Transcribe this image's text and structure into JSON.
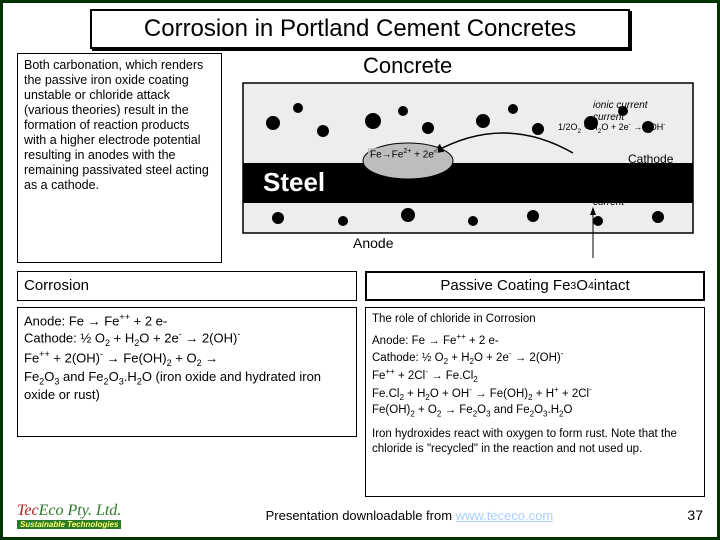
{
  "title": "Corrosion in Portland Cement Concretes",
  "intro": "Both carbonation, which renders the passive iron oxide coating unstable or chloride attack (various theories) result in the formation of reaction products with a higher electrode potential resulting in anodes with the remaining passivated steel acting as a cathode.",
  "corrosion_heading": "Corrosion",
  "passive_heading_html": "Passive Coating Fe<sub>3</sub>O<sub>4</sub> intact",
  "reactions_html": "Anode: Fe → Fe<sup>++</sup> + 2 e-<br>Cathode: ½ O<sub>2</sub> + H<sub>2</sub>O + 2e<sup>-</sup> → 2(OH)<sup>-</sup><br>Fe<sup>++</sup> + 2(OH)<sup>-</sup> → Fe(OH)<sub>2</sub> + O<sub>2</sub> →<br>Fe<sub>2</sub>O<sub>3</sub> and Fe<sub>2</sub>O<sub>3</sub>.H<sub>2</sub>O (iron oxide and hydrated iron oxide or rust)",
  "chloride_title": "The role of chloride in Corrosion",
  "chloride_rx_html": "Anode: Fe → Fe<sup>++</sup> + 2 e-<br>Cathode: ½ O<sub>2</sub> + H<sub>2</sub>O + 2e<sup>-</sup> → 2(OH)<sup>-</sup><br>Fe<sup>++</sup> + 2Cl<sup>-</sup> → Fe.Cl<sub>2</sub><br>Fe.Cl<sub>2</sub> + H<sub>2</sub>O + OH<sup>-</sup> → Fe(OH)<sub>2</sub> + H<sup>+</sup> + 2Cl<sup>-</sup><br>Fe(OH)<sub>2</sub> + O<sub>2</sub> → Fe<sub>2</sub>O<sub>3</sub> and Fe<sub>2</sub>O<sub>3</sub>.H<sub>2</sub>O",
  "chloride_note": "Iron hydroxides react with oxygen to form rust. Note that the chloride is \"recycled\" in the reaction and not used up.",
  "diagram": {
    "concrete_label": "Concrete",
    "steel_label": "Steel",
    "anode_label": "Anode",
    "cathode_label": "Cathode",
    "ionic_current": "ionic current",
    "electronic_current": "electronic current",
    "anode_rx_html": "Fe→Fe<sup>2+</sup> + 2e<sup>-</sup>",
    "cathode_rx_html": "1/2O<sub>2</sub> + H<sub>2</sub>O + 2e<sup>-</sup> → 2OH<sup>-</sup>",
    "colors": {
      "concrete_bg": "#ededed",
      "steel_bg": "#000000",
      "aggregate": "#000000",
      "pit": "#bdbdbd"
    }
  },
  "footer": {
    "logo_main": "TecEco Pty. Ltd.",
    "logo_sub": "Sustainable Technologies",
    "text": "Presentation downloadable from ",
    "link_text": "www.tececo.com",
    "link_color": "#aad0ff"
  },
  "slide_number": "37",
  "logo_colors": {
    "tec": "#b02020",
    "eco": "#2a7a2a",
    "rest": "#2a7a2a",
    "sustainable_bg": "#2a7a2a",
    "sustainable_fg": "#ffff66"
  }
}
